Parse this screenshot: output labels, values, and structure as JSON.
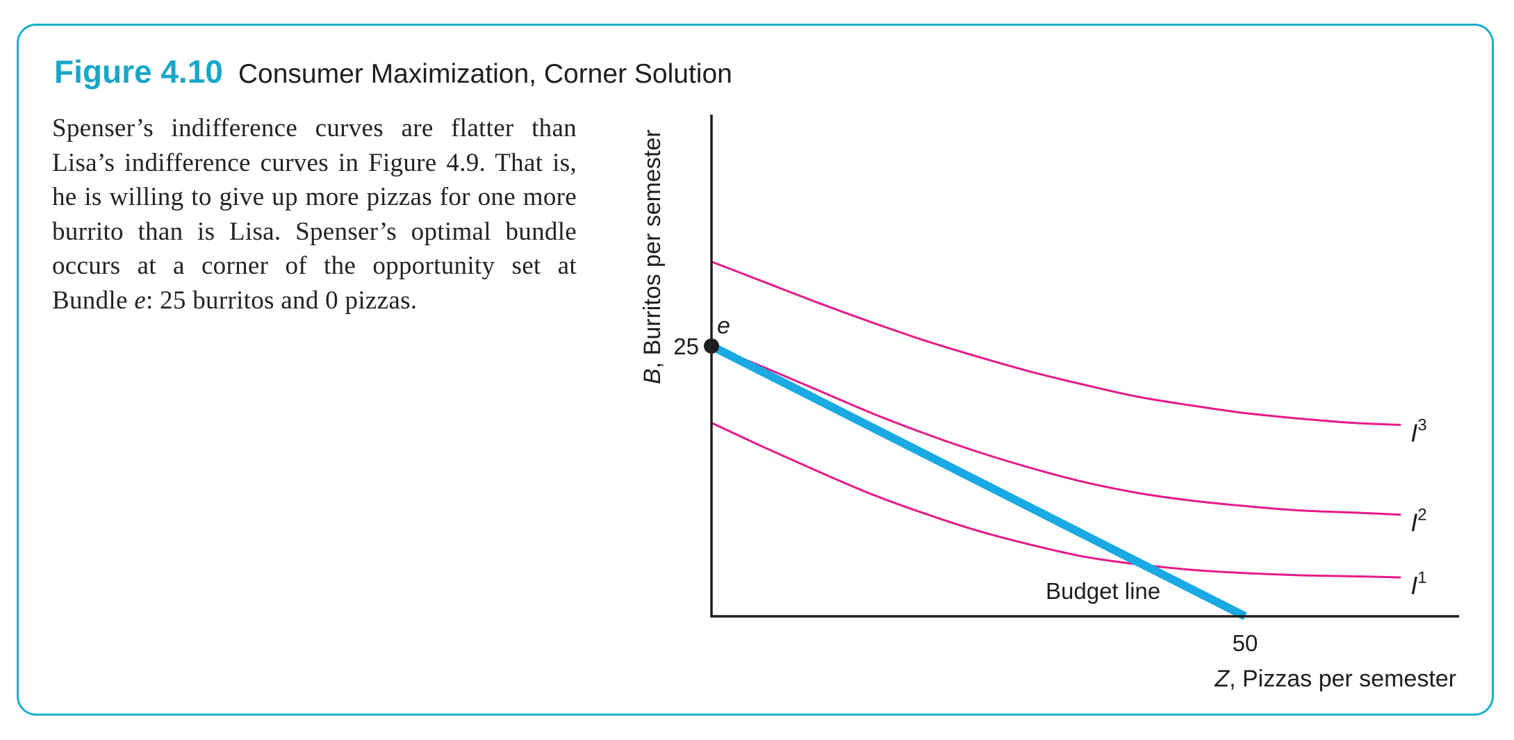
{
  "figure": {
    "number": "Figure 4.10",
    "title": "Consumer Maximization, Corner Solution"
  },
  "caption": {
    "part1": "Spenser’s indifference curves are flatter than Lisa’s indifference curves in Figure 4.9. That is, he is willing to give up more pizzas for one more burrito than is Lisa. Spenser’s optimal bundle occurs at a corner of the opportunity set at Bundle ",
    "italic": "e",
    "part2": ": 25 burritos and 0 pizzas."
  },
  "chart_data": {
    "type": "line",
    "xlabel_var": "Z",
    "xlabel_rest": ", Pizzas per semester",
    "ylabel_var": "B",
    "ylabel_rest": ", Burritos per semester",
    "x_ticks": [
      {
        "value": 50,
        "label": "50"
      }
    ],
    "y_ticks": [
      {
        "value": 25,
        "label": "25"
      }
    ],
    "xlim": [
      0,
      70
    ],
    "ylim": [
      0,
      46.4
    ],
    "budget_line": {
      "label": "Budget line",
      "points": [
        [
          0,
          25
        ],
        [
          50,
          0
        ]
      ],
      "color": "#1aa9e2"
    },
    "optimal_point": {
      "label": "e",
      "x": 0,
      "y": 25,
      "color": "#1e1e1e"
    },
    "indifference_curves": [
      {
        "name": "I1",
        "letter": "I",
        "superscript": "1",
        "color": "#e6198a",
        "points": [
          [
            0,
            17.9
          ],
          [
            5,
            15.6
          ],
          [
            10,
            13.4
          ],
          [
            15,
            11.3
          ],
          [
            20,
            9.5
          ],
          [
            25,
            7.9
          ],
          [
            30,
            6.6
          ],
          [
            35,
            5.5
          ],
          [
            40,
            4.8
          ],
          [
            45,
            4.3
          ],
          [
            50,
            4.0
          ],
          [
            55,
            3.8
          ],
          [
            60,
            3.7
          ],
          [
            64.6,
            3.6
          ]
        ]
      },
      {
        "name": "I2",
        "letter": "I",
        "superscript": "2",
        "color": "#e6198a",
        "points": [
          [
            0,
            25.0
          ],
          [
            5,
            23.0
          ],
          [
            10,
            20.9
          ],
          [
            15,
            18.8
          ],
          [
            20,
            16.9
          ],
          [
            25,
            15.2
          ],
          [
            30,
            13.7
          ],
          [
            35,
            12.4
          ],
          [
            40,
            11.4
          ],
          [
            45,
            10.7
          ],
          [
            50,
            10.2
          ],
          [
            55,
            9.8
          ],
          [
            60,
            9.6
          ],
          [
            64.6,
            9.4
          ]
        ]
      },
      {
        "name": "I3",
        "letter": "I",
        "superscript": "3",
        "color": "#e6198a",
        "points": [
          [
            0,
            32.8
          ],
          [
            5,
            30.9
          ],
          [
            10,
            29.0
          ],
          [
            15,
            27.2
          ],
          [
            20,
            25.5
          ],
          [
            25,
            24.0
          ],
          [
            30,
            22.6
          ],
          [
            35,
            21.4
          ],
          [
            40,
            20.3
          ],
          [
            45,
            19.5
          ],
          [
            50,
            18.8
          ],
          [
            55,
            18.3
          ],
          [
            60,
            17.9
          ],
          [
            64.6,
            17.7
          ]
        ]
      }
    ]
  }
}
